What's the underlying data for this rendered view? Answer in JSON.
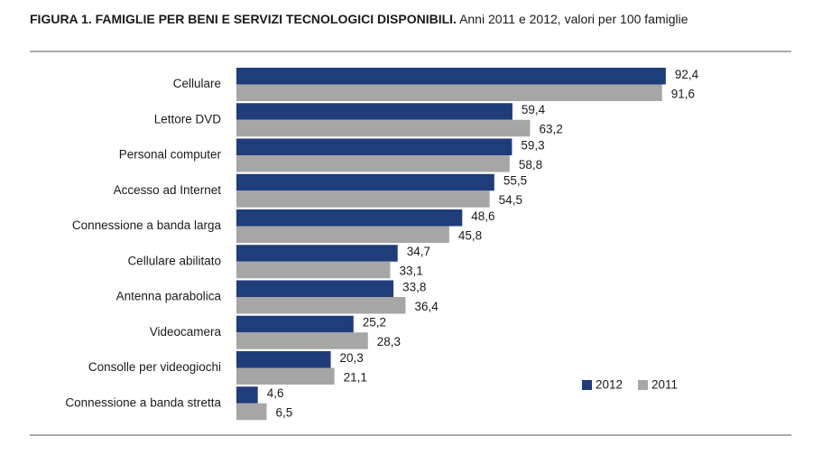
{
  "chart_data": {
    "type": "hbar",
    "title": "FIGURA 1. FAMIGLIE PER BENI E SERVIZI TECNOLOGICI DISPONIBILI.",
    "subtitle": "Anni 2011 e 2012, valori per 100 famiglie",
    "categories": [
      "Cellulare",
      "Lettore DVD",
      "Personal computer",
      "Accesso ad Internet",
      "Connessione a banda larga",
      "Cellulare abilitato",
      "Antenna parabolica",
      "Videocamera",
      "Consolle per videogiochi",
      "Connessione a banda stretta"
    ],
    "series": [
      {
        "name": "2012",
        "color": "#1f3d7a",
        "values": [
          92.4,
          59.4,
          59.3,
          55.5,
          48.6,
          34.7,
          33.8,
          25.2,
          20.3,
          4.6
        ],
        "value_labels": [
          "92,4",
          "59,4",
          "59,3",
          "55,5",
          "48,6",
          "34,7",
          "33,8",
          "25,2",
          "20,3",
          "4,6"
        ]
      },
      {
        "name": "2011",
        "color": "#a6a6a6",
        "values": [
          91.6,
          63.2,
          58.8,
          54.5,
          45.8,
          33.1,
          36.4,
          28.3,
          21.1,
          6.5
        ],
        "value_labels": [
          "91,6",
          "63,2",
          "58,8",
          "54,5",
          "45,8",
          "33,1",
          "36,4",
          "28,3",
          "21,1",
          "6,5"
        ]
      }
    ]
  }
}
